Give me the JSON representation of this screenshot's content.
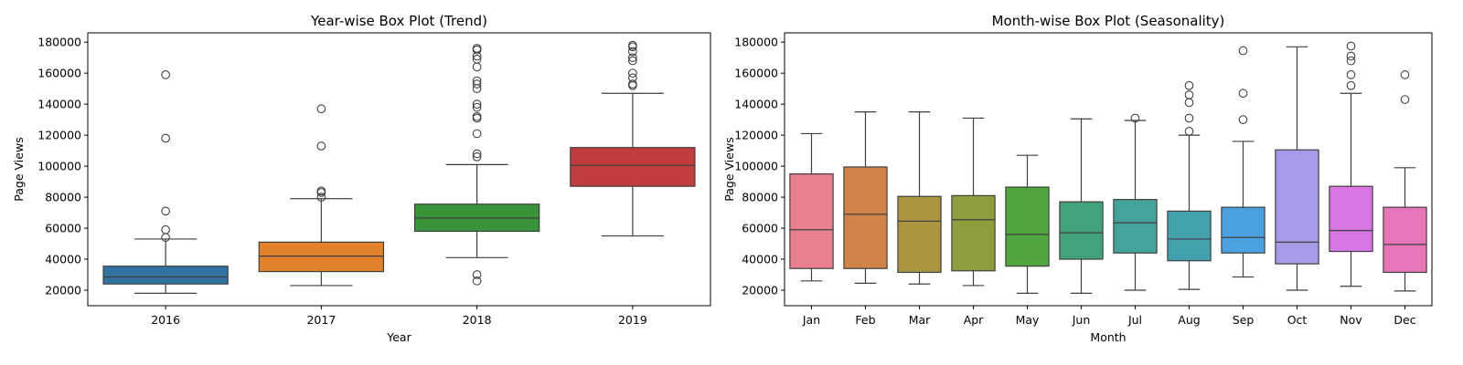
{
  "chart_data": [
    {
      "type": "box",
      "title": "Year-wise Box Plot (Trend)",
      "xlabel": "Year",
      "ylabel": "Page Views",
      "ylim": [
        10000,
        186000
      ],
      "yticks": [
        20000,
        40000,
        60000,
        80000,
        100000,
        120000,
        140000,
        160000,
        180000
      ],
      "categories": [
        "2016",
        "2017",
        "2018",
        "2019"
      ],
      "colors": [
        "#3274a1",
        "#e1812c",
        "#3a923a",
        "#c03d3e"
      ],
      "boxes": [
        {
          "q1": 24000,
          "median": 28500,
          "q3": 35500,
          "whisker_low": 18000,
          "whisker_high": 53000,
          "outliers": [
            54000,
            59000,
            71000,
            118000,
            159000
          ]
        },
        {
          "q1": 32000,
          "median": 42000,
          "q3": 51000,
          "whisker_low": 23000,
          "whisker_high": 79000,
          "outliers": [
            80000,
            83000,
            84000,
            113000,
            137000
          ]
        },
        {
          "q1": 58000,
          "median": 66500,
          "q3": 75500,
          "whisker_low": 41000,
          "whisker_high": 101000,
          "outliers": [
            26000,
            30000,
            106000,
            108000,
            121000,
            131000,
            132000,
            138000,
            140000,
            150000,
            153000,
            155000,
            164000,
            169000,
            171000,
            175000,
            176000
          ]
        },
        {
          "q1": 87000,
          "median": 100500,
          "q3": 112000,
          "whisker_low": 55000,
          "whisker_high": 147000,
          "outliers": [
            152000,
            153000,
            157000,
            160000,
            168000,
            170000,
            174000,
            177000,
            178000
          ]
        }
      ]
    },
    {
      "type": "box",
      "title": "Month-wise Box Plot (Seasonality)",
      "xlabel": "Month",
      "ylabel": "Page Views",
      "ylim": [
        10000,
        186000
      ],
      "yticks": [
        20000,
        40000,
        60000,
        80000,
        100000,
        120000,
        140000,
        160000,
        180000
      ],
      "categories": [
        "Jan",
        "Feb",
        "Mar",
        "Apr",
        "May",
        "Jun",
        "Jul",
        "Aug",
        "Sep",
        "Oct",
        "Nov",
        "Dec"
      ],
      "colors": [
        "#e8808f",
        "#d0844a",
        "#ab9540",
        "#8f9c3e",
        "#4fa53e",
        "#42a37a",
        "#44a29a",
        "#43a0ad",
        "#4aa1de",
        "#a99ae7",
        "#d877e3",
        "#e776b9"
      ],
      "boxes": [
        {
          "q1": 34000,
          "median": 59000,
          "q3": 95000,
          "whisker_low": 26000,
          "whisker_high": 121000,
          "outliers": []
        },
        {
          "q1": 34000,
          "median": 69000,
          "q3": 99500,
          "whisker_low": 24500,
          "whisker_high": 135000,
          "outliers": []
        },
        {
          "q1": 31500,
          "median": 64500,
          "q3": 80500,
          "whisker_low": 24000,
          "whisker_high": 135000,
          "outliers": []
        },
        {
          "q1": 32500,
          "median": 65500,
          "q3": 81000,
          "whisker_low": 23000,
          "whisker_high": 131000,
          "outliers": []
        },
        {
          "q1": 35500,
          "median": 56000,
          "q3": 86500,
          "whisker_low": 18000,
          "whisker_high": 107000,
          "outliers": []
        },
        {
          "q1": 40000,
          "median": 57000,
          "q3": 77000,
          "whisker_low": 18000,
          "whisker_high": 130500,
          "outliers": []
        },
        {
          "q1": 44000,
          "median": 63500,
          "q3": 78500,
          "whisker_low": 20000,
          "whisker_high": 129500,
          "outliers": [
            131000
          ]
        },
        {
          "q1": 39000,
          "median": 53000,
          "q3": 71000,
          "whisker_low": 20500,
          "whisker_high": 120000,
          "outliers": [
            122500,
            131000,
            141000,
            146000,
            152000
          ]
        },
        {
          "q1": 44000,
          "median": 54000,
          "q3": 73500,
          "whisker_low": 28500,
          "whisker_high": 116000,
          "outliers": [
            130000,
            147000,
            174500
          ]
        },
        {
          "q1": 37000,
          "median": 51000,
          "q3": 110500,
          "whisker_low": 20000,
          "whisker_high": 177000,
          "outliers": []
        },
        {
          "q1": 45000,
          "median": 58500,
          "q3": 87000,
          "whisker_low": 22500,
          "whisker_high": 147000,
          "outliers": [
            152000,
            159000,
            168000,
            171000,
            177500
          ]
        },
        {
          "q1": 31500,
          "median": 49500,
          "q3": 73500,
          "whisker_low": 19500,
          "whisker_high": 99000,
          "outliers": [
            143000,
            159000
          ]
        }
      ]
    }
  ]
}
